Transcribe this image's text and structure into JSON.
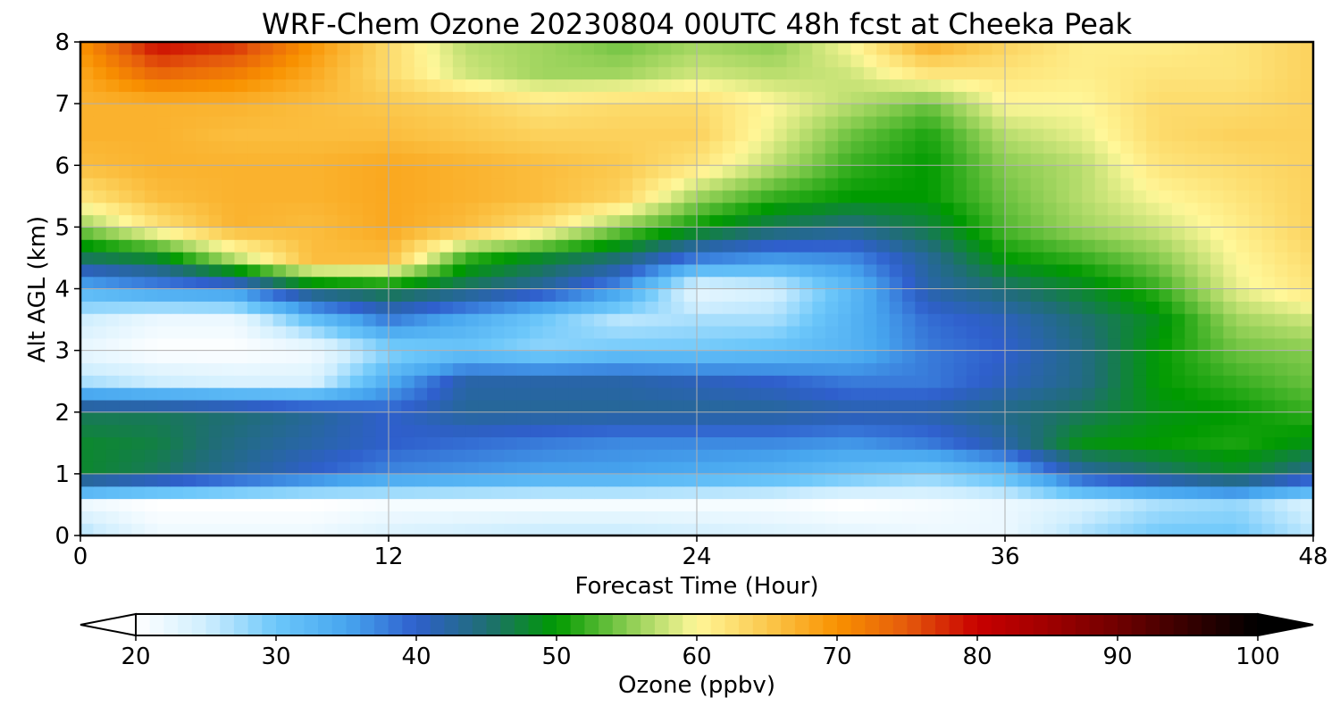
{
  "chart_data": {
    "type": "heatmap",
    "title": "WRF-Chem Ozone  20230804 00UTC 48h fcst at Cheeka Peak",
    "xlabel": "Forecast Time (Hour)",
    "ylabel": "Alt AGL (km)",
    "xlim": [
      0,
      48
    ],
    "ylim": [
      0,
      8
    ],
    "x_ticks": [
      "0",
      "12",
      "24",
      "36",
      "48"
    ],
    "y_ticks": [
      "0",
      "1",
      "2",
      "3",
      "4",
      "5",
      "6",
      "7",
      "8"
    ],
    "grid": true,
    "x": [
      0,
      3,
      6,
      9,
      12,
      15,
      18,
      21,
      24,
      27,
      30,
      33,
      36,
      39,
      42,
      45,
      48
    ],
    "y": [
      0,
      0.5,
      1,
      1.5,
      2,
      2.5,
      3,
      3.5,
      4,
      4.5,
      5,
      5.5,
      6,
      6.5,
      7,
      7.5,
      8
    ],
    "z": [
      [
        27,
        22,
        22,
        22,
        24,
        25,
        26,
        26,
        25,
        24,
        23,
        22,
        22,
        27,
        30,
        30,
        26
      ],
      [
        22,
        20,
        20,
        20,
        21,
        21,
        21,
        21,
        21,
        21,
        20,
        21,
        22,
        24,
        27,
        28,
        24
      ],
      [
        48,
        46,
        43,
        40,
        37,
        36,
        35,
        35,
        34,
        33,
        31,
        29,
        32,
        42,
        45,
        48,
        43
      ],
      [
        48,
        47,
        44,
        42,
        40,
        39,
        38,
        37,
        37,
        37,
        36,
        38,
        42,
        49,
        50,
        51,
        49
      ],
      [
        46,
        46,
        45,
        43,
        40,
        43,
        43,
        43,
        43,
        43,
        42,
        42,
        44,
        46,
        49,
        50,
        52
      ],
      [
        27,
        25,
        24,
        24,
        34,
        42,
        42,
        42,
        41,
        40,
        38,
        38,
        41,
        44,
        50,
        52,
        54
      ],
      [
        22,
        20,
        20,
        21,
        28,
        30,
        28,
        30,
        30,
        31,
        33,
        38,
        40,
        44,
        50,
        54,
        55
      ],
      [
        25,
        22,
        22,
        31,
        38,
        34,
        30,
        26,
        27,
        27,
        33,
        39,
        41,
        45,
        49,
        56,
        58
      ],
      [
        33,
        36,
        37,
        46,
        48,
        45,
        42,
        36,
        22,
        24,
        32,
        42,
        45,
        48,
        52,
        59,
        62
      ],
      [
        46,
        48,
        57,
        66,
        66,
        52,
        48,
        45,
        38,
        36,
        37,
        43,
        50,
        52,
        55,
        60,
        63
      ],
      [
        55,
        62,
        67,
        66,
        68,
        66,
        62,
        55,
        50,
        46,
        44,
        47,
        53,
        56,
        58,
        61,
        64
      ],
      [
        62,
        66,
        67,
        67,
        68,
        67,
        66,
        64,
        56,
        52,
        50,
        50,
        54,
        57,
        60,
        62,
        64
      ],
      [
        66,
        67,
        67,
        67,
        68,
        67,
        66,
        65,
        62,
        57,
        52,
        50,
        55,
        57,
        62,
        63,
        64
      ],
      [
        67,
        67,
        66,
        66,
        66,
        65,
        64,
        64,
        64,
        59,
        54,
        51,
        57,
        59,
        63,
        64,
        64
      ],
      [
        67,
        67,
        67,
        66,
        65,
        64,
        62,
        63,
        63,
        60,
        57,
        54,
        60,
        60,
        63,
        63,
        64
      ],
      [
        68,
        74,
        72,
        68,
        63,
        58,
        56,
        56,
        58,
        57,
        58,
        62,
        62,
        61,
        62,
        62,
        64
      ],
      [
        70,
        80,
        78,
        70,
        63,
        57,
        56,
        54,
        56,
        55,
        60,
        68,
        64,
        61,
        61,
        62,
        64
      ]
    ],
    "colorbar": {
      "label": "Ozone  (ppbv)",
      "min": 20,
      "max": 100,
      "ticks": [
        "20",
        "30",
        "40",
        "50",
        "60",
        "70",
        "80",
        "90",
        "100"
      ],
      "extend": "both",
      "under_color": "#ffffff",
      "over_color": "#000000",
      "stops": [
        {
          "v": 20,
          "c": "#ffffff"
        },
        {
          "v": 25,
          "c": "#cfeefe"
        },
        {
          "v": 30,
          "c": "#6cc7fa"
        },
        {
          "v": 35,
          "c": "#47a6ef"
        },
        {
          "v": 40,
          "c": "#2f5fcc"
        },
        {
          "v": 45,
          "c": "#1f6e73"
        },
        {
          "v": 50,
          "c": "#009a00"
        },
        {
          "v": 55,
          "c": "#88cc50"
        },
        {
          "v": 60,
          "c": "#fff799"
        },
        {
          "v": 65,
          "c": "#fbc84d"
        },
        {
          "v": 70,
          "c": "#f99200"
        },
        {
          "v": 75,
          "c": "#e55a0c"
        },
        {
          "v": 80,
          "c": "#c80000"
        },
        {
          "v": 85,
          "c": "#a00000"
        },
        {
          "v": 90,
          "c": "#700000"
        },
        {
          "v": 95,
          "c": "#360000"
        },
        {
          "v": 100,
          "c": "#000000"
        }
      ]
    }
  }
}
